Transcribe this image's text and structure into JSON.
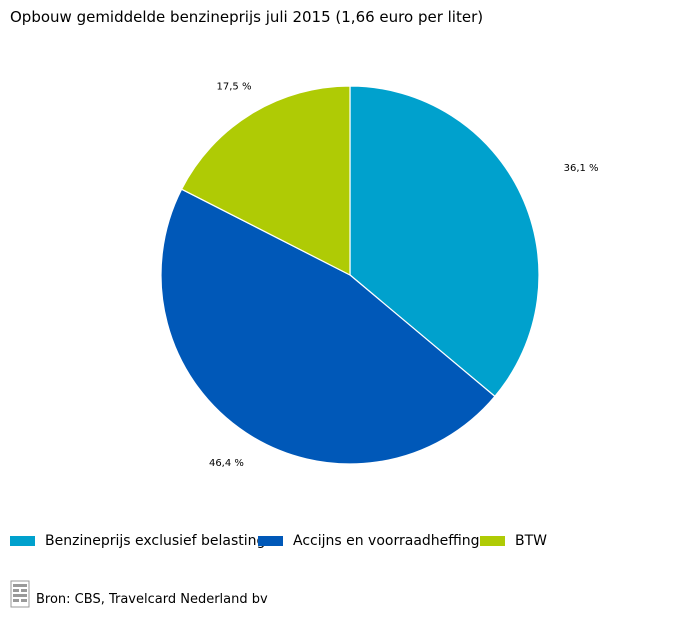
{
  "chart_data": {
    "type": "pie",
    "title": "Opbouw gemiddelde benzineprijs juli 2015 (1,66 euro per liter)",
    "categories": [
      "Benzineprijs exclusief belasting",
      "Accijns en voorraadheffing",
      "BTW"
    ],
    "values": [
      36.1,
      46.4,
      17.5
    ],
    "value_labels": [
      "36,1 %",
      "46,4 %",
      "17,5 %"
    ],
    "colors": [
      "#00a1cd",
      "#0058b8",
      "#afcb05"
    ],
    "start_angle": "12 o'clock",
    "direction": "clockwise",
    "legend_position": "bottom"
  },
  "source": {
    "text": "Bron: CBS, Travelcard Nederland bv",
    "logo_icon": "cbs-logo-icon"
  }
}
